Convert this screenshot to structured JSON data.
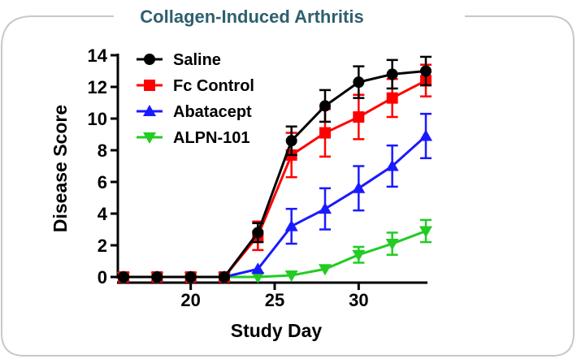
{
  "chart_data": {
    "type": "line",
    "title": "Collagen-Induced Arthritis",
    "xlabel": "Study Day",
    "ylabel": "Disease Score",
    "xlim": [
      16,
      34
    ],
    "ylim": [
      0,
      14
    ],
    "xticks": [
      20,
      25,
      30
    ],
    "yticks": [
      0,
      2,
      4,
      6,
      8,
      10,
      12,
      14
    ],
    "legend_position": "top-left",
    "series": [
      {
        "name": "Saline",
        "color": "#000000",
        "marker": "circle",
        "x": [
          16,
          18,
          20,
          22,
          24,
          26,
          28,
          30,
          32,
          34
        ],
        "y": [
          0,
          0,
          0,
          0,
          2.8,
          8.6,
          10.8,
          12.3,
          12.8,
          13.0
        ],
        "err": [
          0,
          0,
          0,
          0,
          0.6,
          0.9,
          1.0,
          1.0,
          0.9,
          0.9
        ]
      },
      {
        "name": "Fc Control",
        "color": "#ff0000",
        "marker": "square",
        "x": [
          16,
          18,
          20,
          22,
          24,
          26,
          28,
          30,
          32,
          34
        ],
        "y": [
          0,
          0,
          0,
          0,
          2.6,
          7.7,
          9.1,
          10.1,
          11.3,
          12.4
        ],
        "err": [
          0,
          0,
          0,
          0,
          0.9,
          1.4,
          1.5,
          1.4,
          1.2,
          1.0
        ]
      },
      {
        "name": "Abatacept",
        "color": "#1a1aff",
        "marker": "triangle-up",
        "x": [
          16,
          18,
          20,
          22,
          24,
          26,
          28,
          30,
          32,
          34
        ],
        "y": [
          0,
          0,
          0,
          0,
          0.5,
          3.2,
          4.3,
          5.6,
          7.0,
          8.9
        ],
        "err": [
          0,
          0,
          0,
          0,
          0,
          1.1,
          1.3,
          1.4,
          1.3,
          1.4
        ]
      },
      {
        "name": "ALPN-101",
        "color": "#22cc22",
        "marker": "triangle-down",
        "x": [
          16,
          18,
          20,
          22,
          24,
          26,
          28,
          30,
          32,
          34
        ],
        "y": [
          0,
          0,
          0,
          0,
          0,
          0.1,
          0.5,
          1.4,
          2.1,
          2.9
        ],
        "err": [
          0,
          0,
          0,
          0,
          0,
          0,
          0,
          0.5,
          0.7,
          0.7
        ]
      }
    ]
  }
}
